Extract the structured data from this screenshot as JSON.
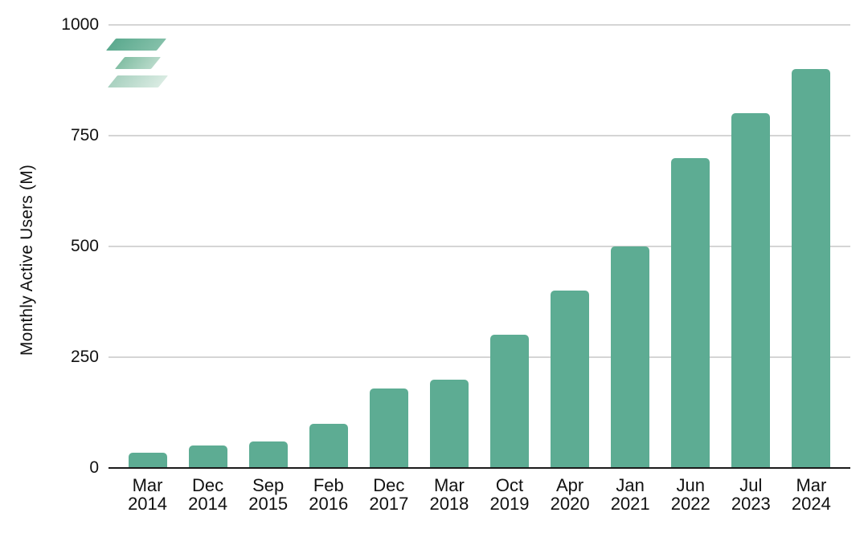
{
  "chart_data": {
    "type": "bar",
    "title": "",
    "xlabel": "",
    "ylabel": "Monthly Active Users (M)",
    "categories": [
      "Mar 2014",
      "Dec 2014",
      "Sep 2015",
      "Feb 2016",
      "Dec 2017",
      "Mar 2018",
      "Oct 2019",
      "Apr 2020",
      "Jan 2021",
      "Jun 2022",
      "Jul 2023",
      "Mar 2024"
    ],
    "values": [
      35,
      50,
      60,
      100,
      180,
      200,
      300,
      400,
      500,
      700,
      800,
      900
    ],
    "ylim": [
      0,
      1000
    ],
    "yticks": [
      0,
      250,
      500,
      750,
      1000
    ],
    "grid": "horizontal",
    "legend": "none",
    "bar_color": "#5dac93",
    "gridline_color": "#d5d5d5",
    "axis_line_color": "#1b1b1b",
    "text_color": "#111111"
  },
  "logo": {
    "name": "stacked-parallelograms-logo",
    "layers": [
      {
        "from": "#5caa8f",
        "to": "#84c0a9"
      },
      {
        "from": "#84bfa5",
        "to": "#b7d9c9"
      },
      {
        "from": "#a9d1c0",
        "to": "#d9ebe2"
      }
    ]
  }
}
